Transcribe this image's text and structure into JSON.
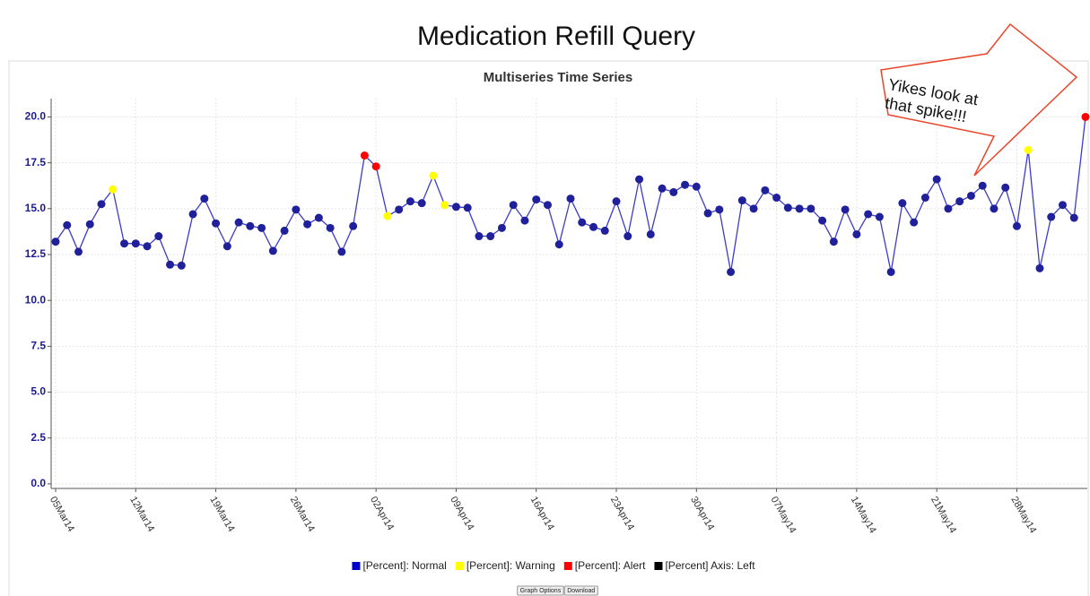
{
  "page_title": "Medication Refill Query",
  "annotation": "Yikes look at that spike!!!",
  "buttons": [
    "Graph Options",
    "Download"
  ],
  "chart_data": {
    "type": "line",
    "title": "Multiseries Time Series",
    "x": [
      "2014-03-05",
      "2014-03-06",
      "2014-03-07",
      "2014-03-08",
      "2014-03-09",
      "2014-03-10",
      "2014-03-11",
      "2014-03-12",
      "2014-03-13",
      "2014-03-14",
      "2014-03-15",
      "2014-03-16",
      "2014-03-17",
      "2014-03-18",
      "2014-03-19",
      "2014-03-20",
      "2014-03-21",
      "2014-03-22",
      "2014-03-23",
      "2014-03-24",
      "2014-03-25",
      "2014-03-26",
      "2014-03-27",
      "2014-03-28",
      "2014-03-29",
      "2014-03-30",
      "2014-03-31",
      "2014-04-01",
      "2014-04-02",
      "2014-04-03",
      "2014-04-04",
      "2014-04-05",
      "2014-04-06",
      "2014-04-07",
      "2014-04-08",
      "2014-04-09",
      "2014-04-10",
      "2014-04-11",
      "2014-04-12",
      "2014-04-13",
      "2014-04-14",
      "2014-04-15",
      "2014-04-16",
      "2014-04-17",
      "2014-04-18",
      "2014-04-19",
      "2014-04-20",
      "2014-04-21",
      "2014-04-22",
      "2014-04-23",
      "2014-04-24",
      "2014-04-25",
      "2014-04-26",
      "2014-04-27",
      "2014-04-28",
      "2014-04-29",
      "2014-04-30",
      "2014-05-01",
      "2014-05-02",
      "2014-05-03",
      "2014-05-04",
      "2014-05-05",
      "2014-05-06",
      "2014-05-07",
      "2014-05-08",
      "2014-05-09",
      "2014-05-10",
      "2014-05-11",
      "2014-05-12",
      "2014-05-13",
      "2014-05-14",
      "2014-05-15",
      "2014-05-16",
      "2014-05-17",
      "2014-05-18",
      "2014-05-19",
      "2014-05-20",
      "2014-05-21",
      "2014-05-22",
      "2014-05-23",
      "2014-05-24",
      "2014-05-25",
      "2014-05-26",
      "2014-05-27",
      "2014-05-28",
      "2014-05-29",
      "2014-05-30",
      "2014-05-31",
      "2014-06-01",
      "2014-06-02",
      "2014-06-03"
    ],
    "values": [
      13.2,
      14.1,
      12.65,
      14.15,
      15.25,
      16.05,
      13.1,
      13.1,
      12.95,
      13.5,
      11.95,
      11.9,
      14.7,
      15.55,
      14.2,
      12.95,
      14.25,
      14.05,
      13.95,
      12.7,
      13.8,
      14.95,
      14.15,
      14.5,
      13.95,
      12.65,
      14.05,
      17.9,
      17.3,
      14.6,
      14.95,
      15.4,
      15.3,
      16.8,
      15.2,
      15.1,
      15.05,
      13.5,
      13.5,
      13.95,
      15.2,
      14.35,
      15.5,
      15.2,
      13.05,
      15.55,
      14.25,
      14.0,
      13.8,
      15.4,
      13.5,
      16.6,
      13.6,
      16.1,
      15.9,
      16.3,
      16.2,
      14.75,
      14.95,
      11.55,
      15.45,
      15.0,
      16.0,
      15.6,
      15.05,
      15.0,
      15.0,
      14.35,
      13.2,
      14.95,
      13.6,
      14.7,
      14.55,
      11.55,
      15.3,
      14.25,
      15.6,
      16.6,
      15.0,
      15.4,
      15.7,
      16.25,
      15.0,
      16.15,
      14.05,
      18.2,
      11.75,
      14.55,
      15.2,
      14.5,
      20.0
    ],
    "line_color": "#3c3cc8",
    "point_colors": [
      "#20209a",
      "#20209a",
      "#20209a",
      "#20209a",
      "#20209a",
      "#ffff00",
      "#20209a",
      "#20209a",
      "#20209a",
      "#20209a",
      "#20209a",
      "#20209a",
      "#20209a",
      "#20209a",
      "#20209a",
      "#20209a",
      "#20209a",
      "#20209a",
      "#20209a",
      "#20209a",
      "#20209a",
      "#20209a",
      "#20209a",
      "#20209a",
      "#20209a",
      "#20209a",
      "#20209a",
      "#ff0000",
      "#ff0000",
      "#ffff00",
      "#20209a",
      "#20209a",
      "#20209a",
      "#ffff00",
      "#ffff00",
      "#20209a",
      "#20209a",
      "#20209a",
      "#20209a",
      "#20209a",
      "#20209a",
      "#20209a",
      "#20209a",
      "#20209a",
      "#20209a",
      "#20209a",
      "#20209a",
      "#20209a",
      "#20209a",
      "#20209a",
      "#20209a",
      "#20209a",
      "#20209a",
      "#20209a",
      "#20209a",
      "#20209a",
      "#20209a",
      "#20209a",
      "#20209a",
      "#20209a",
      "#20209a",
      "#20209a",
      "#20209a",
      "#20209a",
      "#20209a",
      "#20209a",
      "#20209a",
      "#20209a",
      "#20209a",
      "#20209a",
      "#20209a",
      "#20209a",
      "#20209a",
      "#20209a",
      "#20209a",
      "#20209a",
      "#20209a",
      "#20209a",
      "#20209a",
      "#20209a",
      "#20209a",
      "#20209a",
      "#20209a",
      "#20209a",
      "#20209a",
      "#ffff00",
      "#20209a",
      "#20209a",
      "#20209a",
      "#20209a",
      "#ff0000"
    ],
    "legend": [
      {
        "label": "[Percent]: Normal",
        "color": "#0000cc"
      },
      {
        "label": "[Percent]: Warning",
        "color": "#ffff00"
      },
      {
        "label": "[Percent]: Alert",
        "color": "#ff0000"
      },
      {
        "label": "[Percent] Axis:  Left",
        "color": "#000000"
      }
    ],
    "xlim": [
      "2014-03-05",
      "2014-06-03"
    ],
    "xticks": [
      {
        "value": "2014-03-05",
        "label": "05Mar14"
      },
      {
        "value": "2014-03-12",
        "label": "12Mar14"
      },
      {
        "value": "2014-03-19",
        "label": "19Mar14"
      },
      {
        "value": "2014-03-26",
        "label": "26Mar14"
      },
      {
        "value": "2014-04-02",
        "label": "02Apr14"
      },
      {
        "value": "2014-04-09",
        "label": "09Apr14"
      },
      {
        "value": "2014-04-16",
        "label": "16Apr14"
      },
      {
        "value": "2014-04-23",
        "label": "23Apr14"
      },
      {
        "value": "2014-04-30",
        "label": "30Apr14"
      },
      {
        "value": "2014-05-07",
        "label": "07May14"
      },
      {
        "value": "2014-05-14",
        "label": "14May14"
      },
      {
        "value": "2014-05-21",
        "label": "21May14"
      },
      {
        "value": "2014-05-28",
        "label": "28May14"
      }
    ],
    "ylim": [
      -0.25,
      21
    ],
    "yticks": [
      {
        "value": 0,
        "label": "0.0"
      },
      {
        "value": 2.5,
        "label": "2.5"
      },
      {
        "value": 5,
        "label": "5.0"
      },
      {
        "value": 7.5,
        "label": "7.5"
      },
      {
        "value": 10,
        "label": "10.0"
      },
      {
        "value": 12.5,
        "label": "12.5"
      },
      {
        "value": 15,
        "label": "15.0"
      },
      {
        "value": 17.5,
        "label": "17.5"
      },
      {
        "value": 20,
        "label": "20.0"
      }
    ],
    "grid": true
  }
}
